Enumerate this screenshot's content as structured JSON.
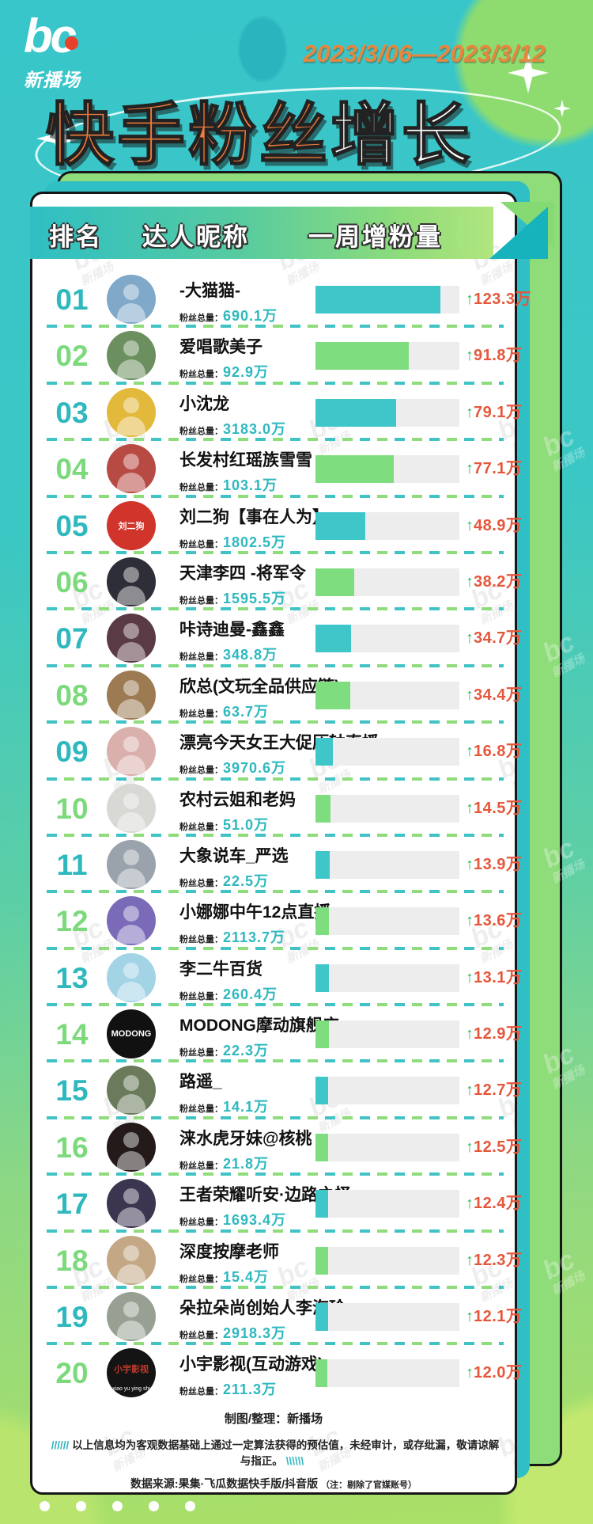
{
  "page": {
    "logo": {
      "text": "bc",
      "sub": "新播场"
    },
    "date_range": "2023/3/06—2023/3/12",
    "title": {
      "orange": "快手粉丝",
      "white": "增长"
    }
  },
  "table": {
    "header": {
      "rank": "排名",
      "name": "达人昵称",
      "growth": "一周增粉量"
    },
    "fans_label": "粉丝总量：",
    "arrow": "↑",
    "rows": [
      {
        "rank": "01",
        "name": "-大猫猫-",
        "fans": "690.1万",
        "growth": "123.3万",
        "avatar": {
          "bg": "#7fa8c9"
        }
      },
      {
        "rank": "02",
        "name": "爱唱歌美子",
        "fans": "92.9万",
        "growth": "91.8万",
        "avatar": {
          "bg": "#6b8f5e"
        }
      },
      {
        "rank": "03",
        "name": "小沈龙",
        "fans": "3183.0万",
        "growth": "79.1万",
        "avatar": {
          "bg": "#e3b93c"
        }
      },
      {
        "rank": "04",
        "name": "长发村红瑶族雪雪",
        "fans": "103.1万",
        "growth": "77.1万",
        "avatar": {
          "bg": "#b84a44"
        }
      },
      {
        "rank": "05",
        "name": "刘二狗【事在人为】",
        "fans": "1802.5万",
        "growth": "48.9万",
        "avatar": {
          "bg": "#d0342a",
          "label": "刘二狗",
          "label_color": "#ffffff"
        }
      },
      {
        "rank": "06",
        "name": "天津李四 -将军令",
        "fans": "1595.5万",
        "growth": "38.2万",
        "avatar": {
          "bg": "#2e2e38"
        }
      },
      {
        "rank": "07",
        "name": "咔诗迪曼-鑫鑫",
        "fans": "348.8万",
        "growth": "34.7万",
        "avatar": {
          "bg": "#5a3a44"
        }
      },
      {
        "rank": "08",
        "name": "欣总(文玩全品供应链)",
        "fans": "63.7万",
        "growth": "34.4万",
        "avatar": {
          "bg": "#9c7a52"
        }
      },
      {
        "rank": "09",
        "name": "漂亮今天女王大促压轴直播",
        "fans": "3970.6万",
        "growth": "16.8万",
        "avatar": {
          "bg": "#d9b0ac"
        }
      },
      {
        "rank": "10",
        "name": "农村云姐和老妈",
        "fans": "51.0万",
        "growth": "14.5万",
        "avatar": {
          "bg": "#d8d8d4"
        }
      },
      {
        "rank": "11",
        "name": "大象说车_严选",
        "fans": "22.5万",
        "growth": "13.9万",
        "avatar": {
          "bg": "#9aa2ac"
        }
      },
      {
        "rank": "12",
        "name": "小娜娜中午12点直播",
        "fans": "2113.7万",
        "growth": "13.6万",
        "avatar": {
          "bg": "#7a6ab8"
        }
      },
      {
        "rank": "13",
        "name": "李二牛百货",
        "fans": "260.4万",
        "growth": "13.1万",
        "avatar": {
          "bg": "#a2d4e6"
        }
      },
      {
        "rank": "14",
        "name": "MODONG摩动旗舰店",
        "fans": "22.3万",
        "growth": "12.9万",
        "avatar": {
          "bg": "#111111",
          "label": "MODONG",
          "label_color": "#ffffff"
        }
      },
      {
        "rank": "15",
        "name": "路遥_",
        "fans": "14.1万",
        "growth": "12.7万",
        "avatar": {
          "bg": "#6a7a5a"
        }
      },
      {
        "rank": "16",
        "name": "涞水虎牙妹@核桃",
        "fans": "21.8万",
        "growth": "12.5万",
        "avatar": {
          "bg": "#241a1a"
        }
      },
      {
        "rank": "17",
        "name": "王者荣耀听安·边路之怪",
        "fans": "1693.4万",
        "growth": "12.4万",
        "avatar": {
          "bg": "#3c3550"
        }
      },
      {
        "rank": "18",
        "name": "深度按摩老师",
        "fans": "15.4万",
        "growth": "12.3万",
        "avatar": {
          "bg": "#c4a886"
        }
      },
      {
        "rank": "19",
        "name": "朵拉朵尚创始人李海珍",
        "fans": "2918.3万",
        "growth": "12.1万",
        "avatar": {
          "bg": "#97a092"
        }
      },
      {
        "rank": "20",
        "name": "小宇影视(互动游戏)",
        "fans": "211.3万",
        "growth": "12.0万",
        "avatar": {
          "bg": "#141414",
          "label": "小宇影视",
          "label_color": "#c0392b",
          "sub": "-xiao yu ying shi-"
        }
      }
    ]
  },
  "footer": {
    "credit": "制图/整理：新播场",
    "slash_left": "//////",
    "disclaimer": "以上信息均为客观数据基础上通过一定算法获得的预估值，未经审计，或存纰漏，敬请谅解与指正。",
    "slash_right": "\\\\\\\\\\\\",
    "source": "数据来源:果集·飞瓜数据快手版/抖音版",
    "source_note": "（注：剔除了官媒账号）"
  },
  "watermark": {
    "logo": "bc",
    "text": "新播场"
  },
  "colors": {
    "teal": "#2fbfc4",
    "light_green": "#7edd7e",
    "title_orange": "#ed7c3a",
    "date_orange": "#e7873d",
    "growth_red": "#e5573b",
    "arrow_green": "#2db863",
    "fans_value": "#2eb8bf",
    "bar_track": "#ededed",
    "card_border": "#161616"
  },
  "chart_data": {
    "type": "bar",
    "orientation": "horizontal",
    "title": "快手粉丝增长",
    "subtitle": "2023/3/06—2023/3/12",
    "xlabel": "达人昵称",
    "ylabel": "一周增粉量（万）",
    "xlim": [
      0,
      130
    ],
    "grid": false,
    "legend_position": "none",
    "categories": [
      "-大猫猫-",
      "爱唱歌美子",
      "小沈龙",
      "长发村红瑶族雪雪",
      "刘二狗【事在人为】",
      "天津李四 -将军令",
      "咔诗迪曼-鑫鑫",
      "欣总(文玩全品供应链)",
      "漂亮今天女王大促压轴直播",
      "农村云姐和老妈",
      "大象说车_严选",
      "小娜娜中午12点直播",
      "李二牛百货",
      "MODONG摩动旗舰店",
      "路遥_",
      "涞水虎牙妹@核桃",
      "王者荣耀听安·边路之怪",
      "深度按摩老师",
      "朵拉朵尚创始人李海珍",
      "小宇影视(互动游戏)"
    ],
    "series": [
      {
        "name": "一周增粉量(万)",
        "values": [
          123.3,
          91.8,
          79.1,
          77.1,
          48.9,
          38.2,
          34.7,
          34.4,
          16.8,
          14.5,
          13.9,
          13.6,
          13.1,
          12.9,
          12.7,
          12.5,
          12.4,
          12.3,
          12.1,
          12.0
        ]
      },
      {
        "name": "粉丝总量(万)",
        "values": [
          690.1,
          92.9,
          3183.0,
          103.1,
          1802.5,
          1595.5,
          348.8,
          63.7,
          3970.6,
          51.0,
          22.5,
          2113.7,
          260.4,
          22.3,
          14.1,
          21.8,
          1693.4,
          15.4,
          2918.3,
          211.3
        ]
      }
    ]
  }
}
